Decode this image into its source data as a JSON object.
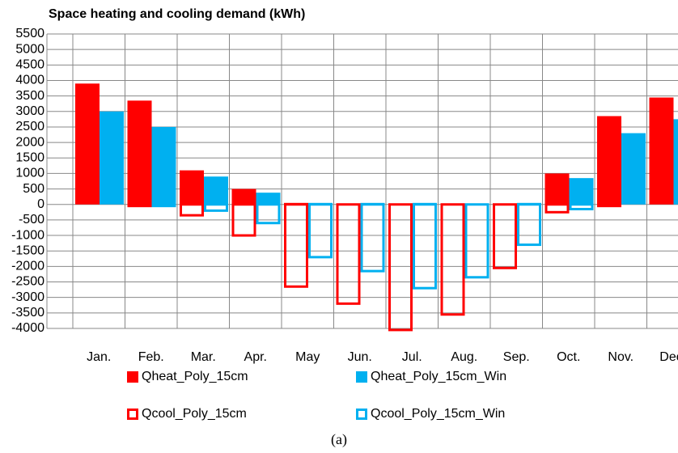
{
  "chart_data": {
    "type": "bar",
    "title": "Space heating and cooling demand (kWh)",
    "caption": "(a)",
    "categories": [
      "Jan.",
      "Feb.",
      "Mar.",
      "Apr.",
      "May",
      "Jun.",
      "Jul.",
      "Aug.",
      "Sep.",
      "Oct.",
      "Nov.",
      "Dec."
    ],
    "series": [
      {
        "name": "Qheat_Poly_15cm",
        "color": "#ff0000",
        "fill": true,
        "values": [
          3900,
          3350,
          1100,
          500,
          50,
          0,
          0,
          0,
          0,
          1000,
          2850,
          3450
        ]
      },
      {
        "name": "Qheat_Poly_15cm_Win",
        "color": "#00b0f0",
        "fill": true,
        "values": [
          3000,
          2500,
          900,
          380,
          50,
          50,
          50,
          0,
          50,
          850,
          2300,
          2750
        ]
      },
      {
        "name": "Qcool_Poly_15cm",
        "color": "#ff0000",
        "fill": false,
        "values": [
          0,
          -50,
          -350,
          -1000,
          -2650,
          -3200,
          -4050,
          -3550,
          -2050,
          -250,
          -50,
          0
        ]
      },
      {
        "name": "Qcool_Poly_15cm_Win",
        "color": "#00b0f0",
        "fill": false,
        "values": [
          0,
          -50,
          -200,
          -600,
          -1700,
          -2150,
          -2700,
          -2350,
          -1300,
          -150,
          0,
          0
        ]
      }
    ],
    "ylim": [
      -4000,
      5500
    ],
    "yticks": [
      -4000,
      -3500,
      -3000,
      -2500,
      -2000,
      -1500,
      -1000,
      -500,
      0,
      500,
      1000,
      1500,
      2000,
      2500,
      3000,
      3500,
      4000,
      4500,
      5000,
      5500
    ],
    "grid": true
  }
}
